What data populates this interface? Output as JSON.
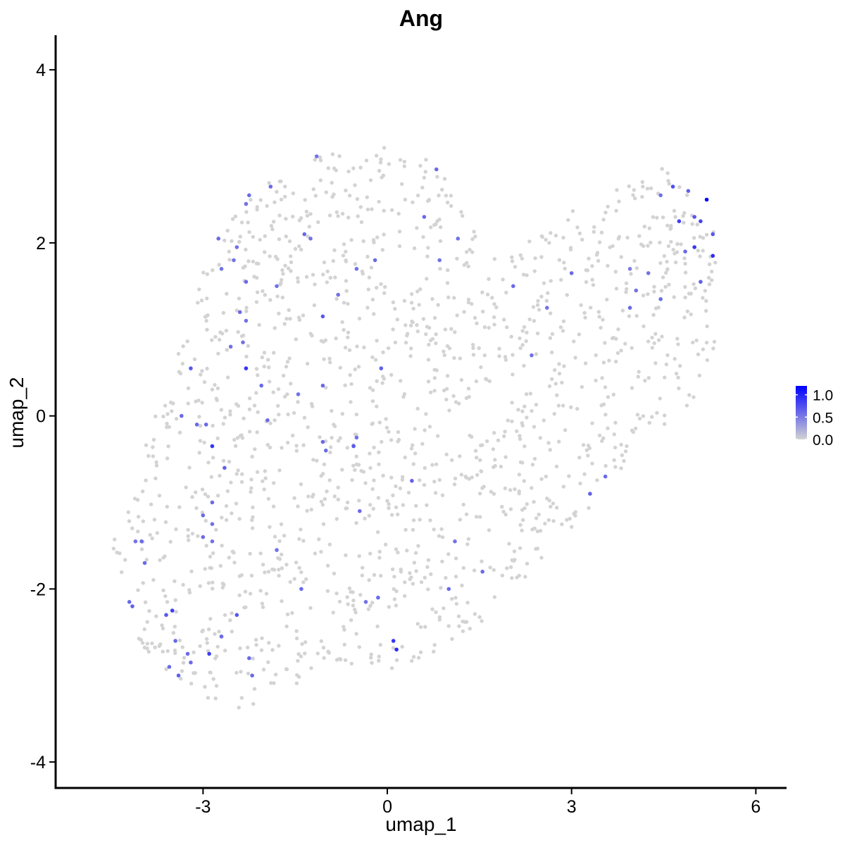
{
  "chart_data": {
    "type": "scatter",
    "title": "Ang",
    "xlabel": "umap_1",
    "ylabel": "umap_2",
    "xlim": [
      -5.4,
      6.5
    ],
    "ylim": [
      -4.3,
      4.4
    ],
    "x_ticks": [
      -3,
      0,
      3,
      6
    ],
    "y_ticks": [
      -4,
      -2,
      0,
      2,
      4
    ],
    "x_tick_labels": [
      "-3",
      "0",
      "3",
      "6"
    ],
    "y_tick_labels": [
      "-4",
      "-2",
      "0",
      "2",
      "4"
    ],
    "grid": false,
    "legend_position": "right",
    "color_scale": {
      "low": "#d3d3d3",
      "high": "#0000ff",
      "range": [
        0,
        1.2
      ],
      "ticks": [
        0.0,
        0.5,
        1.0
      ],
      "tick_labels": [
        "0.0",
        "0.5",
        "1.0"
      ]
    },
    "background_points": {
      "value": 0,
      "count": 1500,
      "region_outline": [
        [
          -4.6,
          -1.2
        ],
        [
          -4.5,
          -1.5
        ],
        [
          -4.3,
          -1.9
        ],
        [
          -4.2,
          -2.4
        ],
        [
          -4.0,
          -2.7
        ],
        [
          -3.7,
          -2.9
        ],
        [
          -3.2,
          -3.2
        ],
        [
          -2.8,
          -3.3
        ],
        [
          -2.4,
          -3.5
        ],
        [
          -2.0,
          -3.3
        ],
        [
          -1.5,
          -3.1
        ],
        [
          -1.0,
          -2.9
        ],
        [
          -0.5,
          -2.9
        ],
        [
          0.0,
          -3.0
        ],
        [
          0.5,
          -2.9
        ],
        [
          1.0,
          -2.7
        ],
        [
          1.5,
          -2.4
        ],
        [
          2.0,
          -2.1
        ],
        [
          2.5,
          -1.7
        ],
        [
          3.0,
          -1.3
        ],
        [
          3.5,
          -0.9
        ],
        [
          4.0,
          -0.5
        ],
        [
          4.5,
          -0.2
        ],
        [
          5.0,
          0.2
        ],
        [
          5.4,
          0.9
        ],
        [
          5.4,
          1.8
        ],
        [
          5.3,
          2.3
        ],
        [
          4.9,
          2.7
        ],
        [
          4.5,
          3.0
        ],
        [
          4.1,
          2.7
        ],
        [
          3.5,
          2.6
        ],
        [
          3.0,
          2.4
        ],
        [
          2.5,
          2.1
        ],
        [
          2.0,
          1.9
        ],
        [
          1.6,
          1.8
        ],
        [
          1.2,
          2.5
        ],
        [
          0.8,
          2.9
        ],
        [
          0.3,
          3.1
        ],
        [
          -0.4,
          3.1
        ],
        [
          -1.2,
          3.0
        ],
        [
          -1.9,
          2.8
        ],
        [
          -2.3,
          2.6
        ],
        [
          -2.7,
          2.2
        ],
        [
          -3.0,
          1.7
        ],
        [
          -3.2,
          1.1
        ],
        [
          -3.5,
          0.6
        ],
        [
          -3.8,
          0.0
        ],
        [
          -4.0,
          -0.5
        ],
        [
          -4.3,
          -0.9
        ]
      ]
    },
    "series": [
      {
        "name": "Ang",
        "points": [
          [
            5.2,
            2.5,
            1.2
          ],
          [
            5.3,
            1.85,
            0.95
          ],
          [
            5.0,
            1.95,
            0.9
          ],
          [
            4.75,
            2.25,
            0.85
          ],
          [
            4.65,
            2.65,
            0.75
          ],
          [
            5.1,
            2.25,
            0.8
          ],
          [
            5.0,
            2.3,
            0.7
          ],
          [
            5.3,
            2.1,
            0.7
          ],
          [
            4.9,
            2.6,
            0.65
          ],
          [
            4.85,
            1.9,
            0.6
          ],
          [
            5.1,
            1.55,
            0.65
          ],
          [
            4.45,
            1.35,
            0.6
          ],
          [
            4.25,
            1.65,
            0.55
          ],
          [
            4.05,
            1.45,
            0.55
          ],
          [
            3.95,
            1.25,
            0.6
          ],
          [
            3.95,
            1.7,
            0.5
          ],
          [
            4.45,
            2.55,
            0.55
          ],
          [
            3.0,
            1.65,
            0.6
          ],
          [
            2.6,
            1.25,
            0.55
          ],
          [
            2.35,
            0.7,
            0.55
          ],
          [
            2.05,
            1.5,
            0.6
          ],
          [
            3.55,
            -0.7,
            0.6
          ],
          [
            3.3,
            -0.9,
            0.65
          ],
          [
            1.55,
            -1.8,
            0.6
          ],
          [
            1.1,
            -1.45,
            0.55
          ],
          [
            1.0,
            -2.0,
            0.6
          ],
          [
            0.1,
            -2.6,
            0.9
          ],
          [
            0.15,
            -2.7,
            0.95
          ],
          [
            -0.15,
            -2.1,
            0.6
          ],
          [
            -0.35,
            -2.15,
            0.55
          ],
          [
            0.4,
            -0.75,
            0.65
          ],
          [
            -0.45,
            -1.1,
            0.6
          ],
          [
            -0.55,
            -0.35,
            0.7
          ],
          [
            -0.5,
            -0.25,
            0.55
          ],
          [
            -1.05,
            -0.3,
            0.6
          ],
          [
            -1.0,
            -0.4,
            0.6
          ],
          [
            -1.45,
            0.25,
            0.55
          ],
          [
            -1.05,
            0.35,
            0.6
          ],
          [
            -0.1,
            0.55,
            0.65
          ],
          [
            -1.05,
            1.15,
            0.7
          ],
          [
            -0.8,
            1.4,
            0.55
          ],
          [
            -0.2,
            1.8,
            0.6
          ],
          [
            -0.5,
            1.7,
            0.55
          ],
          [
            -1.35,
            2.1,
            0.6
          ],
          [
            -1.25,
            2.05,
            0.55
          ],
          [
            -1.15,
            3.0,
            0.55
          ],
          [
            -1.8,
            1.5,
            0.55
          ],
          [
            -1.9,
            2.65,
            0.6
          ],
          [
            -2.25,
            2.55,
            0.6
          ],
          [
            -2.3,
            2.45,
            0.55
          ],
          [
            -2.05,
            0.35,
            0.6
          ],
          [
            -2.4,
            1.2,
            0.6
          ],
          [
            -2.45,
            1.95,
            0.55
          ],
          [
            -2.5,
            1.8,
            0.55
          ],
          [
            -2.7,
            1.7,
            0.55
          ],
          [
            -2.3,
            1.55,
            0.6
          ],
          [
            -2.75,
            2.05,
            0.6
          ],
          [
            -2.3,
            1.1,
            0.55
          ],
          [
            -2.55,
            0.8,
            0.55
          ],
          [
            -2.35,
            0.85,
            0.55
          ],
          [
            -2.3,
            0.55,
            0.9
          ],
          [
            -3.2,
            0.55,
            0.7
          ],
          [
            -2.95,
            -0.1,
            0.6
          ],
          [
            -2.85,
            -0.35,
            0.9
          ],
          [
            -3.1,
            -0.1,
            0.6
          ],
          [
            -3.35,
            0.0,
            0.6
          ],
          [
            -2.65,
            -0.6,
            0.65
          ],
          [
            -2.85,
            -1.0,
            0.6
          ],
          [
            -3.0,
            -1.15,
            0.6
          ],
          [
            -2.85,
            -1.25,
            0.55
          ],
          [
            -3.0,
            -1.4,
            0.6
          ],
          [
            -2.85,
            -1.45,
            0.55
          ],
          [
            -1.95,
            -0.05,
            0.6
          ],
          [
            -1.8,
            -1.55,
            0.55
          ],
          [
            -1.4,
            -2.0,
            0.6
          ],
          [
            -4.1,
            -1.45,
            0.55
          ],
          [
            -4.0,
            -1.45,
            0.6
          ],
          [
            -3.95,
            -1.7,
            0.6
          ],
          [
            -4.15,
            -2.2,
            0.65
          ],
          [
            -4.2,
            -2.15,
            0.6
          ],
          [
            -3.6,
            -2.3,
            0.7
          ],
          [
            -3.5,
            -2.25,
            0.85
          ],
          [
            -3.45,
            -2.6,
            0.6
          ],
          [
            -3.25,
            -2.75,
            0.6
          ],
          [
            -3.55,
            -2.9,
            0.6
          ],
          [
            -3.4,
            -3.0,
            0.65
          ],
          [
            -3.2,
            -2.85,
            0.6
          ],
          [
            -2.9,
            -2.75,
            0.85
          ],
          [
            -2.7,
            -2.55,
            0.6
          ],
          [
            -2.45,
            -2.3,
            0.7
          ],
          [
            -2.25,
            -2.8,
            0.6
          ],
          [
            -2.2,
            -3.0,
            0.6
          ],
          [
            0.6,
            2.3,
            0.6
          ],
          [
            1.15,
            2.05,
            0.55
          ],
          [
            0.8,
            2.85,
            0.6
          ],
          [
            0.85,
            1.8,
            0.55
          ]
        ]
      }
    ]
  }
}
